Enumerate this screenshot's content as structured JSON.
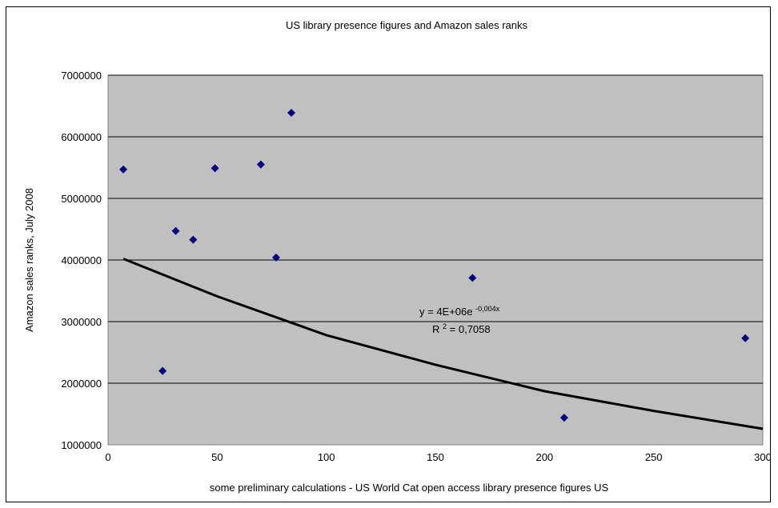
{
  "chart_data": {
    "type": "scatter",
    "title": "US library presence figures and Amazon sales ranks",
    "xlabel": "some preliminary calculations - US World Cat open access library presence figures US",
    "ylabel": "Amazon sales ranks, July 2008",
    "xlim": [
      0,
      300
    ],
    "ylim": [
      1000000,
      7000000
    ],
    "x_ticks": [
      0,
      50,
      100,
      150,
      200,
      250,
      300
    ],
    "y_ticks": [
      1000000,
      2000000,
      3000000,
      4000000,
      5000000,
      6000000,
      7000000
    ],
    "x_tick_labels": [
      "0",
      "50",
      "100",
      "150",
      "200",
      "250",
      "300"
    ],
    "y_tick_labels": [
      "1000000",
      "2000000",
      "3000000",
      "4000000",
      "5000000",
      "6000000",
      "7000000"
    ],
    "grid": "horizontal",
    "series": [
      {
        "points": [
          {
            "x": 7,
            "y": 5470000
          },
          {
            "x": 25,
            "y": 2200000
          },
          {
            "x": 31,
            "y": 4470000
          },
          {
            "x": 39,
            "y": 4330000
          },
          {
            "x": 49,
            "y": 5490000
          },
          {
            "x": 70,
            "y": 5550000
          },
          {
            "x": 77,
            "y": 4040000
          },
          {
            "x": 84,
            "y": 6390000
          },
          {
            "x": 167,
            "y": 3710000
          },
          {
            "x": 209,
            "y": 1440000
          },
          {
            "x": 292,
            "y": 2730000
          }
        ]
      }
    ],
    "trendline": {
      "type": "exponential",
      "equation_text": "y = 4E+06e",
      "equation_exponent": "-0,004x",
      "r2_prefix": "R",
      "r2_sup": "2",
      "r2_value": " = 0,7058",
      "curve_points": [
        {
          "x": 7,
          "y": 4020000
        },
        {
          "x": 50,
          "y": 3410000
        },
        {
          "x": 100,
          "y": 2780000
        },
        {
          "x": 150,
          "y": 2300000
        },
        {
          "x": 200,
          "y": 1870000
        },
        {
          "x": 250,
          "y": 1550000
        },
        {
          "x": 300,
          "y": 1260000
        }
      ]
    },
    "colors": {
      "plot_background": "#c0c0c0",
      "marker": "#000080",
      "trendline": "#000000",
      "gridline": "#000000"
    }
  }
}
